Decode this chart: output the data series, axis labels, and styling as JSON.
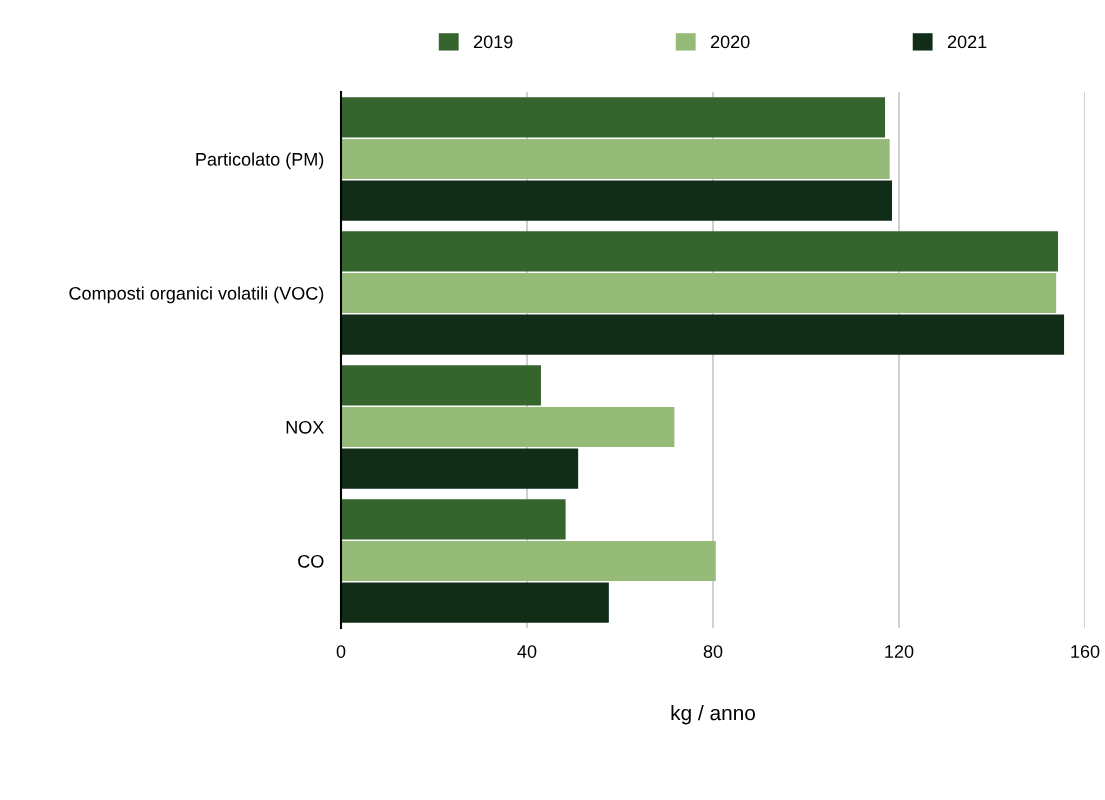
{
  "chart_data": {
    "type": "bar",
    "orientation": "horizontal",
    "xlabel": "kg / anno",
    "categories": [
      "Particolato (PM)",
      "Composti organici volatili (VOC)",
      "NOX",
      "CO"
    ],
    "series": [
      {
        "name": "2019",
        "color": "#35652d",
        "values": [
          117,
          154.2,
          43,
          48.3
        ]
      },
      {
        "name": "2020",
        "color": "#96ba77",
        "values": [
          118,
          153.8,
          71.7,
          80.6
        ]
      },
      {
        "name": "2021",
        "color": "#122d17",
        "values": [
          118.5,
          155.5,
          51,
          57.6
        ]
      }
    ],
    "xlim": [
      0,
      160
    ],
    "xticks": [
      0,
      40,
      80,
      120,
      160
    ],
    "grid": "x",
    "legend": "top"
  }
}
